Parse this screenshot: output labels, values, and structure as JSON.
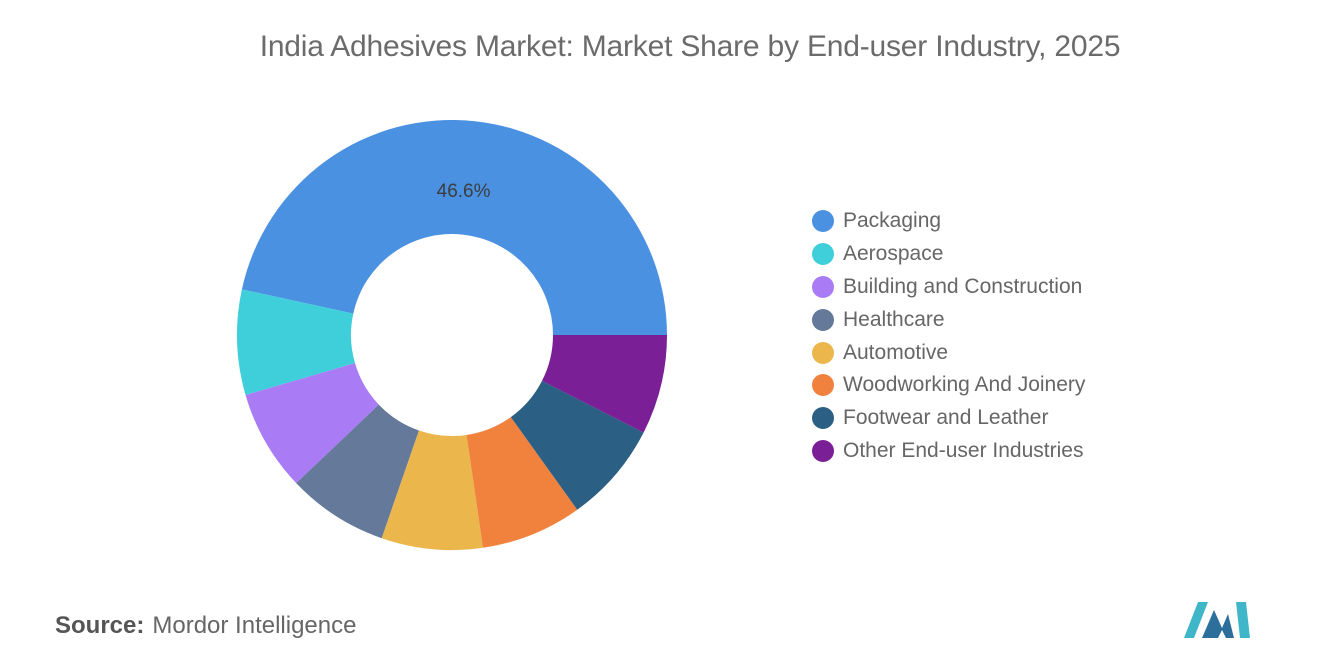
{
  "chart_data": {
    "type": "pie",
    "style": "donut",
    "title": "India Adhesives Market: Market Share by End-user Industry, 2025",
    "categories": [
      "Packaging",
      "Aerospace",
      "Building and Construction",
      "Healthcare",
      "Automotive",
      "Woodworking And Joinery",
      "Footwear and Leather",
      "Other End-user Industries"
    ],
    "values": [
      46.6,
      7.9,
      7.6,
      7.6,
      7.6,
      7.6,
      7.6,
      7.5
    ],
    "data_labels": [
      "46.6%",
      "",
      "",
      "",
      "",
      "",
      "",
      ""
    ],
    "colors": [
      "#4a91e2",
      "#3fcfdb",
      "#a97cf5",
      "#65799b",
      "#ebb74c",
      "#f0823e",
      "#2b5f84",
      "#7a1f96"
    ],
    "legend_position": "right"
  },
  "source": {
    "label": "Source:",
    "text": "Mordor Intelligence"
  },
  "logo": {
    "icon": "mordor-intelligence-logo-icon",
    "colors": [
      "#3fb7c9",
      "#2c6f9a"
    ]
  }
}
